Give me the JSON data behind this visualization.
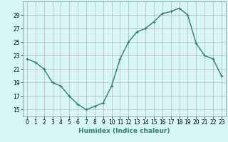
{
  "x": [
    0,
    1,
    2,
    3,
    4,
    5,
    6,
    7,
    8,
    9,
    10,
    11,
    12,
    13,
    14,
    15,
    16,
    17,
    18,
    19,
    20,
    21,
    22,
    23
  ],
  "y": [
    22.5,
    22.0,
    21.0,
    19.0,
    18.5,
    17.0,
    15.8,
    15.0,
    15.5,
    16.0,
    18.5,
    22.5,
    25.0,
    26.5,
    27.0,
    28.0,
    29.2,
    29.5,
    30.0,
    29.0,
    24.8,
    23.0,
    22.5,
    20.0
  ],
  "line_color": "#2e7d6e",
  "marker": "+",
  "marker_size": 3,
  "bg_color": "#d6f5f5",
  "grid_color": "#c0b0b0",
  "xlabel": "Humidex (Indice chaleur)",
  "xlim": [
    -0.5,
    23.5
  ],
  "ylim": [
    14,
    31
  ],
  "yticks": [
    15,
    17,
    19,
    21,
    23,
    25,
    27,
    29
  ],
  "xticks": [
    0,
    1,
    2,
    3,
    4,
    5,
    6,
    7,
    8,
    9,
    10,
    11,
    12,
    13,
    14,
    15,
    16,
    17,
    18,
    19,
    20,
    21,
    22,
    23
  ],
  "xlabel_fontsize": 6.5,
  "tick_fontsize": 5.5,
  "line_width": 1.0
}
